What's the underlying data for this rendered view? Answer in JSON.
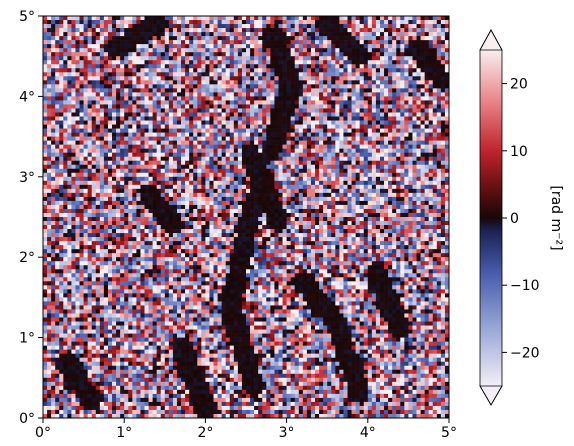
{
  "chart_data": {
    "type": "heatmap",
    "title": "",
    "xlabel": "",
    "ylabel": "",
    "x_ticks": [
      "0°",
      "1°",
      "2°",
      "3°",
      "4°",
      "5°"
    ],
    "y_ticks": [
      "0°",
      "1°",
      "2°",
      "3°",
      "4°",
      "5°"
    ],
    "xlim": [
      0,
      5
    ],
    "ylim": [
      0,
      5
    ],
    "colorbar": {
      "label": "[rad m⁻²]",
      "range": [
        -25,
        25
      ],
      "ticks": [
        {
          "value": 20,
          "label": "20"
        },
        {
          "value": 10,
          "label": "10"
        },
        {
          "value": 0,
          "label": "0"
        },
        {
          "value": -10,
          "label": "−10"
        },
        {
          "value": -20,
          "label": "−20"
        }
      ],
      "extend": "both",
      "colormap": [
        "#f2eef8",
        "#5a72b8",
        "#1f2a5e",
        "#1a0a0a",
        "#5a1010",
        "#cf2a30",
        "#f7eeee"
      ]
    },
    "field_description_values": {
      "grid_cells": 100,
      "dominant_structure": "noisy rotation-measure map with dark near-zero filamentary regions"
    }
  }
}
